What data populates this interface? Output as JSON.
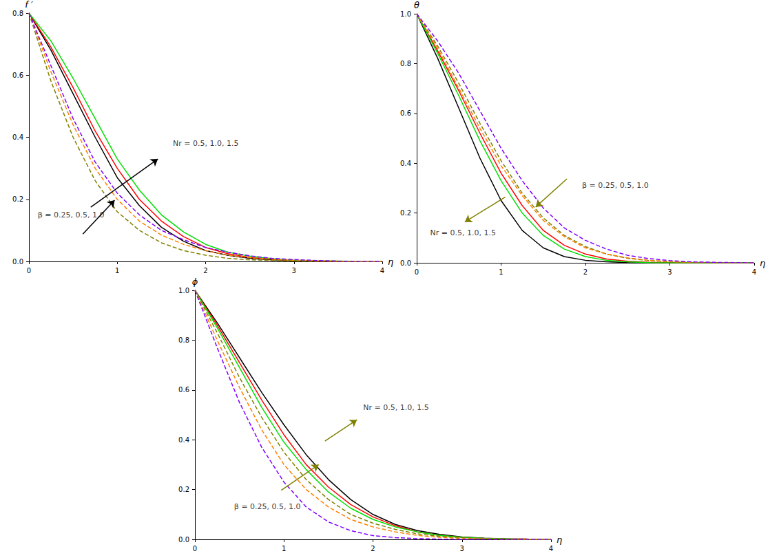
{
  "chart_data": [
    {
      "type": "line",
      "x_label": "η",
      "y_label": "f ′",
      "x": [
        0,
        0.25,
        0.5,
        0.75,
        1,
        1.25,
        1.5,
        1.75,
        2,
        2.25,
        2.5,
        2.75,
        3,
        3.25,
        3.5,
        3.75,
        4
      ],
      "xlim": [
        0,
        4
      ],
      "xticks": [
        0,
        1,
        2,
        3,
        4
      ],
      "ylim": [
        0,
        0.8
      ],
      "yticks": [
        {
          "value": 0,
          "label": "0.0"
        },
        0.2,
        0.4,
        0.6,
        0.8
      ],
      "grid": false,
      "series": [
        {
          "color": "#000000",
          "line_style": "solid",
          "values": [
            0.8,
            0.68,
            0.54,
            0.4,
            0.27,
            0.18,
            0.11,
            0.065,
            0.035,
            0.02,
            0.01,
            0.005,
            0.003,
            0.001,
            0,
            0,
            0
          ]
        },
        {
          "color": "#ff0000",
          "line_style": "solid",
          "values": [
            0.8,
            0.69,
            0.56,
            0.42,
            0.3,
            0.2,
            0.13,
            0.08,
            0.045,
            0.025,
            0.013,
            0.007,
            0.003,
            0.001,
            0,
            0,
            0
          ]
        },
        {
          "color": "#00e000",
          "line_style": "solid",
          "values": [
            0.8,
            0.71,
            0.59,
            0.46,
            0.33,
            0.23,
            0.15,
            0.095,
            0.055,
            0.03,
            0.017,
            0.009,
            0.004,
            0.002,
            0.001,
            0,
            0
          ]
        },
        {
          "color": "#808000",
          "line_style": "dashed",
          "values": [
            0.8,
            0.58,
            0.4,
            0.26,
            0.16,
            0.1,
            0.06,
            0.035,
            0.02,
            0.01,
            0.005,
            0.003,
            0.001,
            0,
            0,
            0,
            0
          ]
        },
        {
          "color": "#ff8000",
          "line_style": "dashed",
          "values": [
            0.8,
            0.61,
            0.44,
            0.3,
            0.2,
            0.13,
            0.085,
            0.055,
            0.035,
            0.02,
            0.012,
            0.007,
            0.004,
            0.002,
            0.001,
            0,
            0
          ]
        },
        {
          "color": "#8000ff",
          "line_style": "dashed",
          "values": [
            0.8,
            0.63,
            0.46,
            0.32,
            0.22,
            0.15,
            0.1,
            0.07,
            0.045,
            0.03,
            0.018,
            0.01,
            0.006,
            0.003,
            0.001,
            0,
            0
          ]
        }
      ],
      "annotations": [
        {
          "text": "Nr = 0.5, 1.0, 1.5",
          "x": 1.63,
          "y": 0.38,
          "color": "#000000",
          "arrow": {
            "from": [
              0.7,
              0.175
            ],
            "to": [
              1.46,
              0.33
            ]
          }
        },
        {
          "text": "β = 0.25, 0.5, 1.0",
          "x": 0.1,
          "y": 0.15,
          "color": "#000000",
          "arrow": {
            "from": [
              0.61,
              0.088
            ],
            "to": [
              0.97,
              0.197
            ]
          }
        }
      ]
    },
    {
      "type": "line",
      "x_label": "η",
      "y_label": "θ",
      "x": [
        0,
        0.25,
        0.5,
        0.75,
        1,
        1.25,
        1.5,
        1.75,
        2,
        2.25,
        2.5,
        2.75,
        3,
        3.25,
        3.5,
        3.75,
        4
      ],
      "xlim": [
        0,
        4
      ],
      "xticks": [
        0,
        1,
        2,
        3,
        4
      ],
      "ylim": [
        0,
        1
      ],
      "yticks": [
        {
          "value": 0,
          "label": "0.0"
        },
        0.2,
        0.4,
        0.6,
        0.8,
        {
          "value": 1,
          "label": "1.0"
        }
      ],
      "grid": false,
      "series": [
        {
          "color": "#000000",
          "line_style": "solid",
          "values": [
            1,
            0.82,
            0.62,
            0.42,
            0.25,
            0.13,
            0.06,
            0.025,
            0.01,
            0.004,
            0.001,
            0,
            0,
            0,
            0,
            0,
            0
          ]
        },
        {
          "color": "#ff0000",
          "line_style": "solid",
          "values": [
            1,
            0.85,
            0.69,
            0.52,
            0.36,
            0.23,
            0.13,
            0.07,
            0.035,
            0.015,
            0.006,
            0.002,
            0.001,
            0,
            0,
            0,
            0
          ]
        },
        {
          "color": "#00e000",
          "line_style": "solid",
          "values": [
            1,
            0.84,
            0.67,
            0.49,
            0.33,
            0.2,
            0.11,
            0.055,
            0.025,
            0.01,
            0.004,
            0.001,
            0,
            0,
            0,
            0,
            0
          ]
        },
        {
          "color": "#808000",
          "line_style": "dashed",
          "values": [
            1,
            0.87,
            0.72,
            0.56,
            0.41,
            0.28,
            0.18,
            0.11,
            0.065,
            0.035,
            0.018,
            0.009,
            0.004,
            0.002,
            0.001,
            0,
            0
          ]
        },
        {
          "color": "#ff8000",
          "line_style": "dashed",
          "values": [
            1,
            0.86,
            0.7,
            0.54,
            0.39,
            0.27,
            0.17,
            0.105,
            0.06,
            0.035,
            0.02,
            0.01,
            0.005,
            0.002,
            0.001,
            0,
            0
          ]
        },
        {
          "color": "#8000ff",
          "line_style": "dashed",
          "values": [
            1,
            0.89,
            0.76,
            0.61,
            0.46,
            0.33,
            0.22,
            0.14,
            0.09,
            0.055,
            0.03,
            0.017,
            0.009,
            0.004,
            0.002,
            0.001,
            0
          ]
        }
      ],
      "annotations": [
        {
          "text": "Nr = 0.5, 1.0, 1.5",
          "x": 0.16,
          "y": 0.12,
          "color": "#808000",
          "arrow": {
            "from": [
              1.05,
              0.264
            ],
            "to": [
              0.57,
              0.164
            ]
          }
        },
        {
          "text": "β = 0.25, 0.5, 1.0",
          "x": 1.96,
          "y": 0.31,
          "color": "#808000",
          "arrow": {
            "from": [
              1.78,
              0.337
            ],
            "to": [
              1.41,
              0.224
            ]
          }
        }
      ]
    },
    {
      "type": "line",
      "x_label": "η",
      "y_label": "ϕ",
      "x": [
        0,
        0.25,
        0.5,
        0.75,
        1,
        1.25,
        1.5,
        1.75,
        2,
        2.25,
        2.5,
        2.75,
        3,
        3.25,
        3.5,
        3.75,
        4
      ],
      "xlim": [
        0,
        4
      ],
      "xticks": [
        0,
        1,
        2,
        3,
        4
      ],
      "ylim": [
        0,
        1
      ],
      "yticks": [
        {
          "value": 0,
          "label": "0.0"
        },
        0.2,
        0.4,
        0.6,
        0.8,
        {
          "value": 1,
          "label": "1.0"
        }
      ],
      "grid": false,
      "series": [
        {
          "color": "#000000",
          "line_style": "solid",
          "values": [
            1,
            0.87,
            0.73,
            0.59,
            0.46,
            0.34,
            0.24,
            0.16,
            0.1,
            0.06,
            0.035,
            0.02,
            0.01,
            0.005,
            0.002,
            0.001,
            0
          ]
        },
        {
          "color": "#ff0000",
          "line_style": "solid",
          "values": [
            1,
            0.86,
            0.71,
            0.56,
            0.42,
            0.3,
            0.21,
            0.14,
            0.09,
            0.055,
            0.03,
            0.016,
            0.008,
            0.004,
            0.002,
            0.001,
            0
          ]
        },
        {
          "color": "#00e000",
          "line_style": "solid",
          "values": [
            1,
            0.85,
            0.69,
            0.53,
            0.39,
            0.28,
            0.19,
            0.125,
            0.08,
            0.05,
            0.03,
            0.016,
            0.008,
            0.004,
            0.002,
            0,
            0
          ]
        },
        {
          "color": "#808000",
          "line_style": "dashed",
          "values": [
            1,
            0.83,
            0.65,
            0.49,
            0.35,
            0.24,
            0.16,
            0.1,
            0.065,
            0.04,
            0.022,
            0.012,
            0.006,
            0.003,
            0.001,
            0,
            0
          ]
        },
        {
          "color": "#ff8000",
          "line_style": "dashed",
          "values": [
            1,
            0.8,
            0.61,
            0.44,
            0.3,
            0.2,
            0.13,
            0.08,
            0.05,
            0.03,
            0.016,
            0.008,
            0.004,
            0.002,
            0,
            0,
            0
          ]
        },
        {
          "color": "#8000ff",
          "line_style": "dashed",
          "values": [
            1,
            0.77,
            0.55,
            0.37,
            0.23,
            0.13,
            0.07,
            0.035,
            0.015,
            0.007,
            0.003,
            0.001,
            0,
            0,
            0,
            0,
            0
          ]
        }
      ],
      "annotations": [
        {
          "text": "Nr = 0.5, 1.0, 1.5",
          "x": 1.89,
          "y": 0.53,
          "color": "#808000",
          "arrow": {
            "from": [
              1.46,
              0.395
            ],
            "to": [
              1.82,
              0.48
            ]
          }
        },
        {
          "text": "β = 0.25, 0.5, 1.0",
          "x": 0.44,
          "y": 0.13,
          "color": "#808000",
          "arrow": {
            "from": [
              0.97,
              0.197
            ],
            "to": [
              1.39,
              0.3
            ]
          }
        }
      ]
    }
  ]
}
